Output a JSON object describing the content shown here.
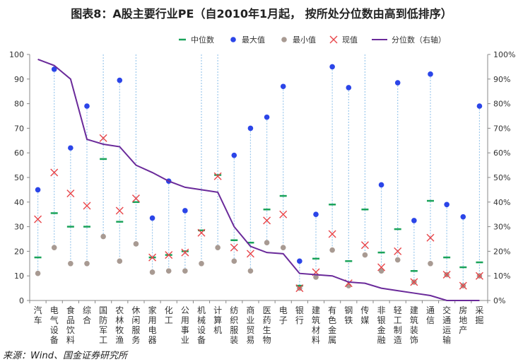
{
  "title": "图表8：A股主要行业PE（自2010年1月起， 按所处分位数由高到低排序）",
  "source": "来源：Wind、国金证券研究所",
  "colors": {
    "median": "#1aa35a",
    "max": "#2b45e8",
    "min": "#a89a92",
    "current": "#e8464a",
    "percentile": "#6a2a9a",
    "range": "#9cc8ec"
  },
  "chart_data": {
    "type": "scatter+line",
    "legend": [
      "中位数",
      "最大值",
      "最小值",
      "现值",
      "分位数（右轴）"
    ],
    "legend_position": "top",
    "categories": [
      "汽车",
      "电气设备",
      "食品饮料",
      "综合",
      "国防军工",
      "农林牧渔",
      "休闲服务",
      "家用电器",
      "化工",
      "公用事业",
      "机械设备",
      "计算机",
      "纺织服装",
      "商业贸易",
      "医药生物",
      "电子",
      "银行",
      "建筑材料",
      "有色金属",
      "钢铁",
      "传媒",
      "非银金融",
      "轻工制造",
      "建筑装饰",
      "通信",
      "交通运输",
      "房地产",
      "采掘"
    ],
    "series": [
      {
        "name": "中位数",
        "values": [
          17.5,
          35.5,
          30,
          30,
          57.5,
          32,
          40,
          17.5,
          18.5,
          20,
          28.5,
          51,
          24.5,
          23.5,
          37,
          42.5,
          6,
          17,
          39,
          16,
          37,
          19.5,
          29,
          12,
          40.5,
          17.5,
          13.5,
          15.5
        ]
      },
      {
        "name": "最大值",
        "values": [
          45,
          94,
          62,
          79,
          null,
          89.5,
          null,
          33.5,
          48.5,
          36.5,
          null,
          null,
          59,
          70,
          74.5,
          87,
          16,
          35,
          95,
          86.5,
          null,
          47,
          88.5,
          32.5,
          92,
          39,
          34,
          79
        ]
      },
      {
        "name": "最小值",
        "values": [
          11,
          21.5,
          15,
          15,
          26,
          16,
          23,
          11.5,
          12,
          12,
          15,
          21.5,
          16,
          12,
          23.5,
          21.5,
          5,
          9.5,
          20.5,
          6,
          18.5,
          12,
          16.5,
          7.5,
          15,
          10.5,
          6,
          10
        ]
      },
      {
        "name": "现值",
        "values": [
          33,
          52,
          43.5,
          38.5,
          66,
          36.5,
          41.5,
          17.5,
          18.5,
          19.5,
          27.5,
          50.5,
          21.5,
          19,
          32.5,
          35,
          5,
          11.5,
          27,
          7,
          22.5,
          13.5,
          20,
          7.5,
          25.5,
          10.5,
          6,
          10
        ]
      },
      {
        "name": "分位数（右轴）",
        "axis": "right",
        "values": [
          98,
          95.5,
          90,
          65.5,
          63.5,
          62.5,
          55,
          52,
          48.5,
          46,
          45,
          44,
          30,
          22,
          19.5,
          19,
          11,
          10.5,
          10,
          7.5,
          7,
          5,
          4,
          3,
          2,
          0,
          0,
          0
        ]
      }
    ],
    "ylim": [
      0,
      100
    ],
    "yticks": [
      "0",
      "10",
      "20",
      "30",
      "40",
      "50",
      "60",
      "70",
      "80",
      "90",
      "100"
    ],
    "y2lim": [
      0,
      100
    ],
    "y2ticks": [
      "0%",
      "10%",
      "20%",
      "30%",
      "40%",
      "50%",
      "60%",
      "70%",
      "80%",
      "90%",
      "100%"
    ]
  }
}
